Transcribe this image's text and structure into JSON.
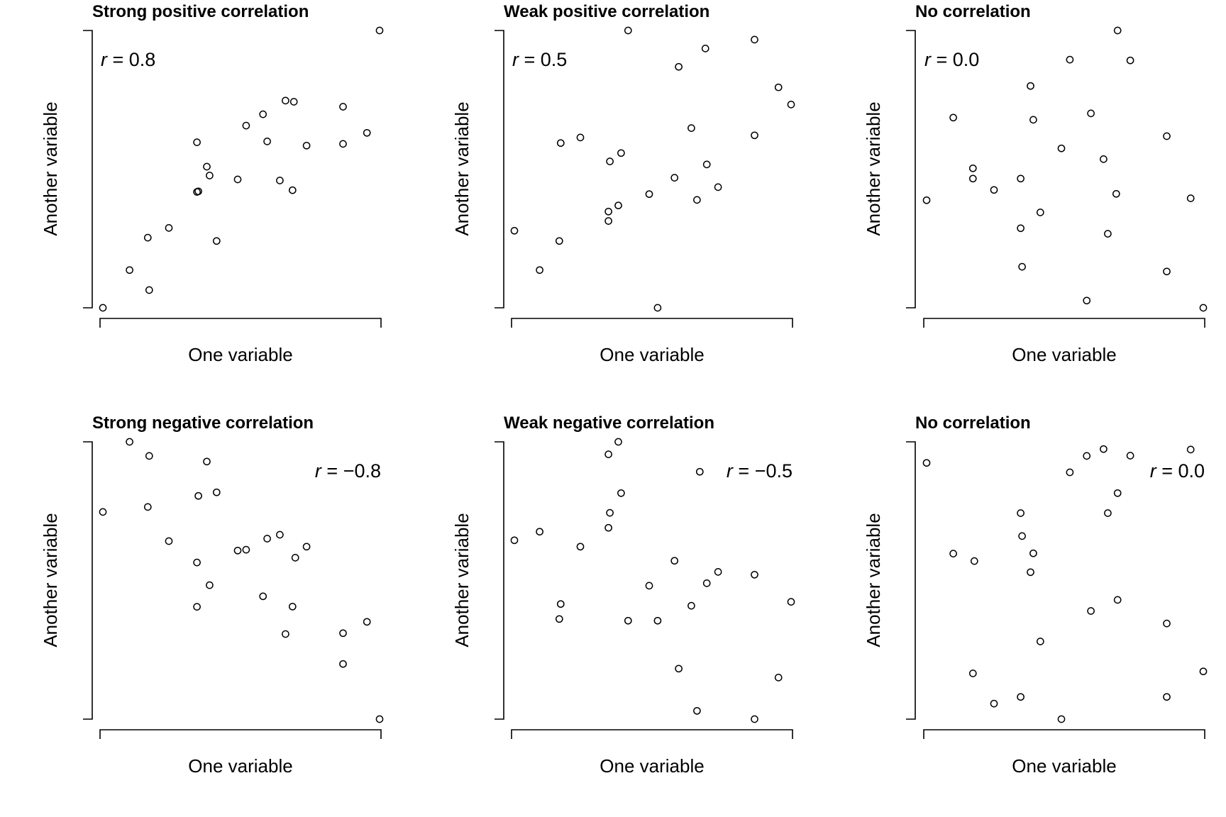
{
  "chart_data": [
    {
      "type": "scatter",
      "title": "Strong positive correlation",
      "xlabel": "One variable",
      "ylabel": "Another variable",
      "annotation": "r = 0.8",
      "annotation_position": "top-left",
      "xlim": [
        0,
        1
      ],
      "ylim": [
        0,
        1
      ],
      "points": [
        [
          0.01,
          0.0
        ],
        [
          0.105,
          0.136
        ],
        [
          0.175,
          0.064
        ],
        [
          0.17,
          0.253
        ],
        [
          0.245,
          0.288
        ],
        [
          0.345,
          0.418
        ],
        [
          0.35,
          0.42
        ],
        [
          0.345,
          0.597
        ],
        [
          0.38,
          0.509
        ],
        [
          0.39,
          0.477
        ],
        [
          0.415,
          0.241
        ],
        [
          0.49,
          0.463
        ],
        [
          0.52,
          0.657
        ],
        [
          0.58,
          0.698
        ],
        [
          0.595,
          0.6
        ],
        [
          0.64,
          0.459
        ],
        [
          0.66,
          0.747
        ],
        [
          0.685,
          0.424
        ],
        [
          0.69,
          0.743
        ],
        [
          0.735,
          0.585
        ],
        [
          0.865,
          0.725
        ],
        [
          0.865,
          0.591
        ],
        [
          0.95,
          0.631
        ],
        [
          0.995,
          1.0
        ]
      ]
    },
    {
      "type": "scatter",
      "title": "Weak positive correlation",
      "xlabel": "One variable",
      "ylabel": "Another variable",
      "annotation": "r = 0.5",
      "annotation_position": "top-left",
      "xlim": [
        0,
        1
      ],
      "ylim": [
        0,
        1
      ],
      "points": [
        [
          0.01,
          0.278
        ],
        [
          0.1,
          0.136
        ],
        [
          0.17,
          0.241
        ],
        [
          0.175,
          0.594
        ],
        [
          0.245,
          0.614
        ],
        [
          0.345,
          0.347
        ],
        [
          0.345,
          0.313
        ],
        [
          0.35,
          0.528
        ],
        [
          0.38,
          0.369
        ],
        [
          0.39,
          0.558
        ],
        [
          0.415,
          1.0
        ],
        [
          0.49,
          0.41
        ],
        [
          0.52,
          0.0
        ],
        [
          0.58,
          0.469
        ],
        [
          0.595,
          0.869
        ],
        [
          0.64,
          0.648
        ],
        [
          0.66,
          0.389
        ],
        [
          0.69,
          0.935
        ],
        [
          0.695,
          0.517
        ],
        [
          0.735,
          0.435
        ],
        [
          0.865,
          0.967
        ],
        [
          0.865,
          0.622
        ],
        [
          0.95,
          0.795
        ],
        [
          0.995,
          0.733
        ]
      ]
    },
    {
      "type": "scatter",
      "title": "No correlation",
      "xlabel": "One variable",
      "ylabel": "Another variable",
      "annotation": "r = 0.0",
      "annotation_position": "top-left",
      "xlim": [
        0,
        1
      ],
      "ylim": [
        0,
        1
      ],
      "points": [
        [
          0.01,
          0.388
        ],
        [
          0.105,
          0.686
        ],
        [
          0.175,
          0.503
        ],
        [
          0.175,
          0.466
        ],
        [
          0.25,
          0.425
        ],
        [
          0.345,
          0.466
        ],
        [
          0.345,
          0.287
        ],
        [
          0.35,
          0.148
        ],
        [
          0.38,
          0.8
        ],
        [
          0.39,
          0.678
        ],
        [
          0.415,
          0.344
        ],
        [
          0.49,
          0.575
        ],
        [
          0.52,
          0.895
        ],
        [
          0.58,
          0.026
        ],
        [
          0.595,
          0.701
        ],
        [
          0.64,
          0.536
        ],
        [
          0.655,
          0.267
        ],
        [
          0.685,
          0.411
        ],
        [
          0.69,
          1.0
        ],
        [
          0.735,
          0.892
        ],
        [
          0.865,
          0.619
        ],
        [
          0.865,
          0.131
        ],
        [
          0.95,
          0.395
        ],
        [
          0.995,
          0.0
        ]
      ]
    },
    {
      "type": "scatter",
      "title": "Strong negative correlation",
      "xlabel": "One variable",
      "ylabel": "Another variable",
      "annotation": "r = −0.8",
      "annotation_position": "top-right",
      "xlim": [
        0,
        1
      ],
      "ylim": [
        0,
        1
      ],
      "points": [
        [
          0.01,
          0.747
        ],
        [
          0.105,
          1.0
        ],
        [
          0.17,
          0.765
        ],
        [
          0.175,
          0.949
        ],
        [
          0.245,
          0.642
        ],
        [
          0.345,
          0.565
        ],
        [
          0.345,
          0.405
        ],
        [
          0.35,
          0.805
        ],
        [
          0.38,
          0.929
        ],
        [
          0.39,
          0.483
        ],
        [
          0.415,
          0.818
        ],
        [
          0.49,
          0.608
        ],
        [
          0.52,
          0.611
        ],
        [
          0.58,
          0.443
        ],
        [
          0.595,
          0.651
        ],
        [
          0.64,
          0.665
        ],
        [
          0.66,
          0.307
        ],
        [
          0.685,
          0.406
        ],
        [
          0.695,
          0.582
        ],
        [
          0.735,
          0.622
        ],
        [
          0.865,
          0.31
        ],
        [
          0.865,
          0.199
        ],
        [
          0.95,
          0.351
        ],
        [
          0.995,
          0.0
        ]
      ]
    },
    {
      "type": "scatter",
      "title": "Weak negative correlation",
      "xlabel": "One variable",
      "ylabel": "Another variable",
      "annotation": "r = −0.5",
      "annotation_position": "top-right",
      "xlim": [
        0,
        1
      ],
      "ylim": [
        0,
        1
      ],
      "points": [
        [
          0.01,
          0.645
        ],
        [
          0.1,
          0.676
        ],
        [
          0.17,
          0.361
        ],
        [
          0.175,
          0.415
        ],
        [
          0.245,
          0.622
        ],
        [
          0.345,
          0.69
        ],
        [
          0.35,
          0.744
        ],
        [
          0.345,
          0.955
        ],
        [
          0.38,
          1.0
        ],
        [
          0.39,
          0.815
        ],
        [
          0.415,
          0.355
        ],
        [
          0.49,
          0.481
        ],
        [
          0.52,
          0.355
        ],
        [
          0.58,
          0.571
        ],
        [
          0.595,
          0.182
        ],
        [
          0.64,
          0.409
        ],
        [
          0.66,
          0.03
        ],
        [
          0.67,
          0.892
        ],
        [
          0.695,
          0.49
        ],
        [
          0.735,
          0.531
        ],
        [
          0.865,
          0.521
        ],
        [
          0.865,
          0.0
        ],
        [
          0.95,
          0.15
        ],
        [
          0.995,
          0.423
        ]
      ]
    },
    {
      "type": "scatter",
      "title": "No correlation",
      "xlabel": "One variable",
      "ylabel": "Another variable",
      "annotation": "r = 0.0",
      "annotation_position": "top-right",
      "xlim": [
        0,
        1
      ],
      "ylim": [
        0,
        1
      ],
      "points": [
        [
          0.01,
          0.924
        ],
        [
          0.105,
          0.597
        ],
        [
          0.175,
          0.165
        ],
        [
          0.18,
          0.57
        ],
        [
          0.25,
          0.056
        ],
        [
          0.345,
          0.743
        ],
        [
          0.345,
          0.08
        ],
        [
          0.35,
          0.66
        ],
        [
          0.38,
          0.53
        ],
        [
          0.39,
          0.598
        ],
        [
          0.415,
          0.28
        ],
        [
          0.49,
          0.0
        ],
        [
          0.52,
          0.89
        ],
        [
          0.58,
          0.949
        ],
        [
          0.595,
          0.39
        ],
        [
          0.64,
          0.974
        ],
        [
          0.655,
          0.743
        ],
        [
          0.69,
          0.815
        ],
        [
          0.69,
          0.43
        ],
        [
          0.735,
          0.95
        ],
        [
          0.865,
          0.345
        ],
        [
          0.865,
          0.08
        ],
        [
          0.95,
          0.972
        ],
        [
          0.995,
          0.172
        ]
      ]
    }
  ]
}
